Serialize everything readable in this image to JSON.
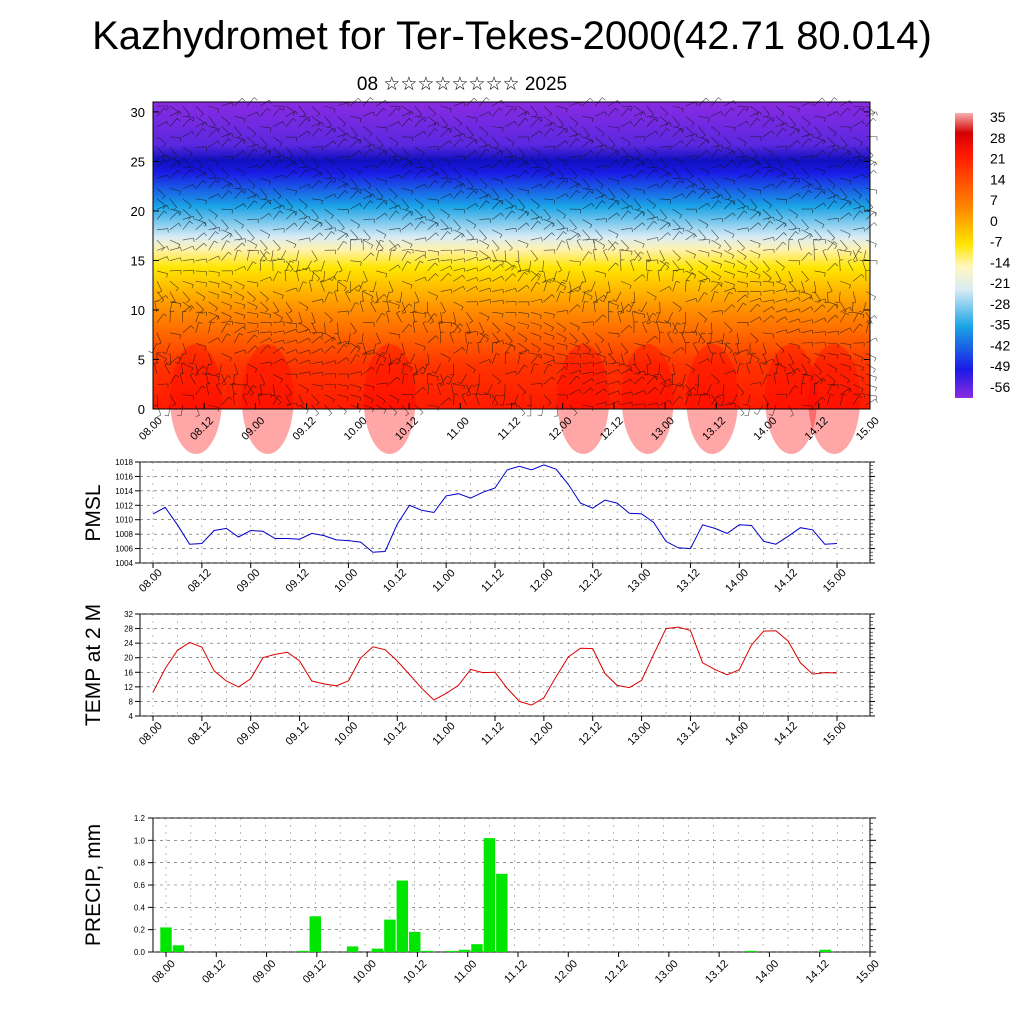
{
  "title": "Kazhydromet for Ter-Tekes-2000(42.71 80.014)",
  "subtitle": "08 ☆☆☆☆☆☆☆☆ 2025",
  "chart_data": [
    {
      "type": "heatmap",
      "name": "vertical cross-section",
      "x_ticks": [
        "08.00",
        "08.12",
        "09.00",
        "09.12",
        "10.00",
        "10.12",
        "11.00",
        "11.12",
        "12.00",
        "12.12",
        "13.00",
        "13.12",
        "14.00",
        "14.12",
        "15.00"
      ],
      "y_ticks": [
        0,
        5,
        10,
        15,
        20,
        25,
        30
      ],
      "ylim": [
        0,
        31
      ],
      "colorbar_labels": [
        35,
        28,
        21,
        14,
        7,
        0,
        -7,
        -14,
        -21,
        -28,
        -35,
        -42,
        -49,
        -56
      ],
      "colorbar_range": [
        -60,
        38
      ],
      "colors": {
        "warm": "#ff1a00",
        "orange": "#ff8c00",
        "yellow": "#ffe600",
        "pale": "#d9ecf5",
        "cyan": "#1aa3e6",
        "blue": "#1a1ae6",
        "violet": "#8a2be2"
      }
    },
    {
      "type": "line",
      "ylabel": "PMSL",
      "x_ticks": [
        "08.00",
        "08.12",
        "09.00",
        "09.12",
        "10.00",
        "10.12",
        "11.00",
        "11.12",
        "12.00",
        "12.12",
        "13.00",
        "13.12",
        "14.00",
        "14.12",
        "15.00"
      ],
      "y_ticks": [
        1004,
        1006,
        1008,
        1010,
        1012,
        1014,
        1016,
        1018
      ],
      "ylim": [
        1004,
        1018
      ],
      "color": "#0000cc",
      "values": [
        1010.8,
        1011.7,
        1009.3,
        1006.6,
        1006.7,
        1008.5,
        1008.8,
        1007.6,
        1008.5,
        1008.4,
        1007.4,
        1007.4,
        1007.3,
        1008.1,
        1007.8,
        1007.2,
        1007.1,
        1006.9,
        1005.5,
        1005.6,
        1009.4,
        1012.0,
        1011.3,
        1011.0,
        1013.3,
        1013.6,
        1013.0,
        1013.8,
        1014.4,
        1016.9,
        1017.4,
        1016.9,
        1017.6,
        1017.0,
        1014.9,
        1012.3,
        1011.6,
        1012.7,
        1012.3,
        1010.9,
        1010.8,
        1009.6,
        1007.0,
        1006.1,
        1006.0,
        1009.3,
        1008.8,
        1008.1,
        1009.3,
        1009.2,
        1007.0,
        1006.6,
        1007.7,
        1008.9,
        1008.6,
        1006.6,
        1006.7
      ]
    },
    {
      "type": "line",
      "ylabel": "TEMP at 2 M",
      "x_ticks": [
        "08.00",
        "08.12",
        "09.00",
        "09.12",
        "10.00",
        "10.12",
        "11.00",
        "11.12",
        "12.00",
        "12.12",
        "13.00",
        "13.12",
        "14.00",
        "14.12",
        "15.00"
      ],
      "y_ticks": [
        4,
        8,
        12,
        16,
        20,
        24,
        28,
        32
      ],
      "ylim": [
        4,
        32
      ],
      "color": "#dd0000",
      "values": [
        10.5,
        17.0,
        22.0,
        24.2,
        22.9,
        16.4,
        13.6,
        12.0,
        14.2,
        20.0,
        20.9,
        21.5,
        19.1,
        13.6,
        12.8,
        12.3,
        13.6,
        19.9,
        23.0,
        22.2,
        19.1,
        15.4,
        11.6,
        8.4,
        10.2,
        12.4,
        16.8,
        15.9,
        16.0,
        11.6,
        8.0,
        7.0,
        9.0,
        14.8,
        20.2,
        22.6,
        22.5,
        15.7,
        12.4,
        11.8,
        13.8,
        21.0,
        28.0,
        28.4,
        27.5,
        18.6,
        16.8,
        15.3,
        16.7,
        23.5,
        27.3,
        27.4,
        24.6,
        18.6,
        15.5,
        15.9,
        15.8
      ]
    },
    {
      "type": "bar",
      "ylabel": "PRECIP, mm",
      "x_ticks": [
        "08.00",
        "08.12",
        "09.00",
        "09.12",
        "10.00",
        "10.12",
        "11.00",
        "11.12",
        "12.00",
        "12.12",
        "13.00",
        "13.12",
        "14.00",
        "14.12",
        "15.00"
      ],
      "y_ticks": [
        "0.0",
        "0.2",
        "0.4",
        "0.6",
        "0.8",
        "1.0",
        "1.2"
      ],
      "ylim": [
        0,
        1.2
      ],
      "color": "#00e600",
      "values": [
        0.22,
        0.06,
        0,
        0,
        0,
        0,
        0,
        0,
        0,
        0,
        0,
        0.01,
        0.32,
        0,
        0,
        0.05,
        0,
        0.03,
        0.29,
        0.64,
        0.18,
        0.01,
        0,
        0.01,
        0.02,
        0.07,
        1.02,
        0.7,
        0,
        0,
        0,
        0,
        0,
        0,
        0,
        0,
        0,
        0,
        0,
        0,
        0,
        0,
        0,
        0,
        0,
        0,
        0,
        0.01,
        0,
        0,
        0,
        0,
        0,
        0.02,
        0,
        0,
        0
      ]
    }
  ]
}
